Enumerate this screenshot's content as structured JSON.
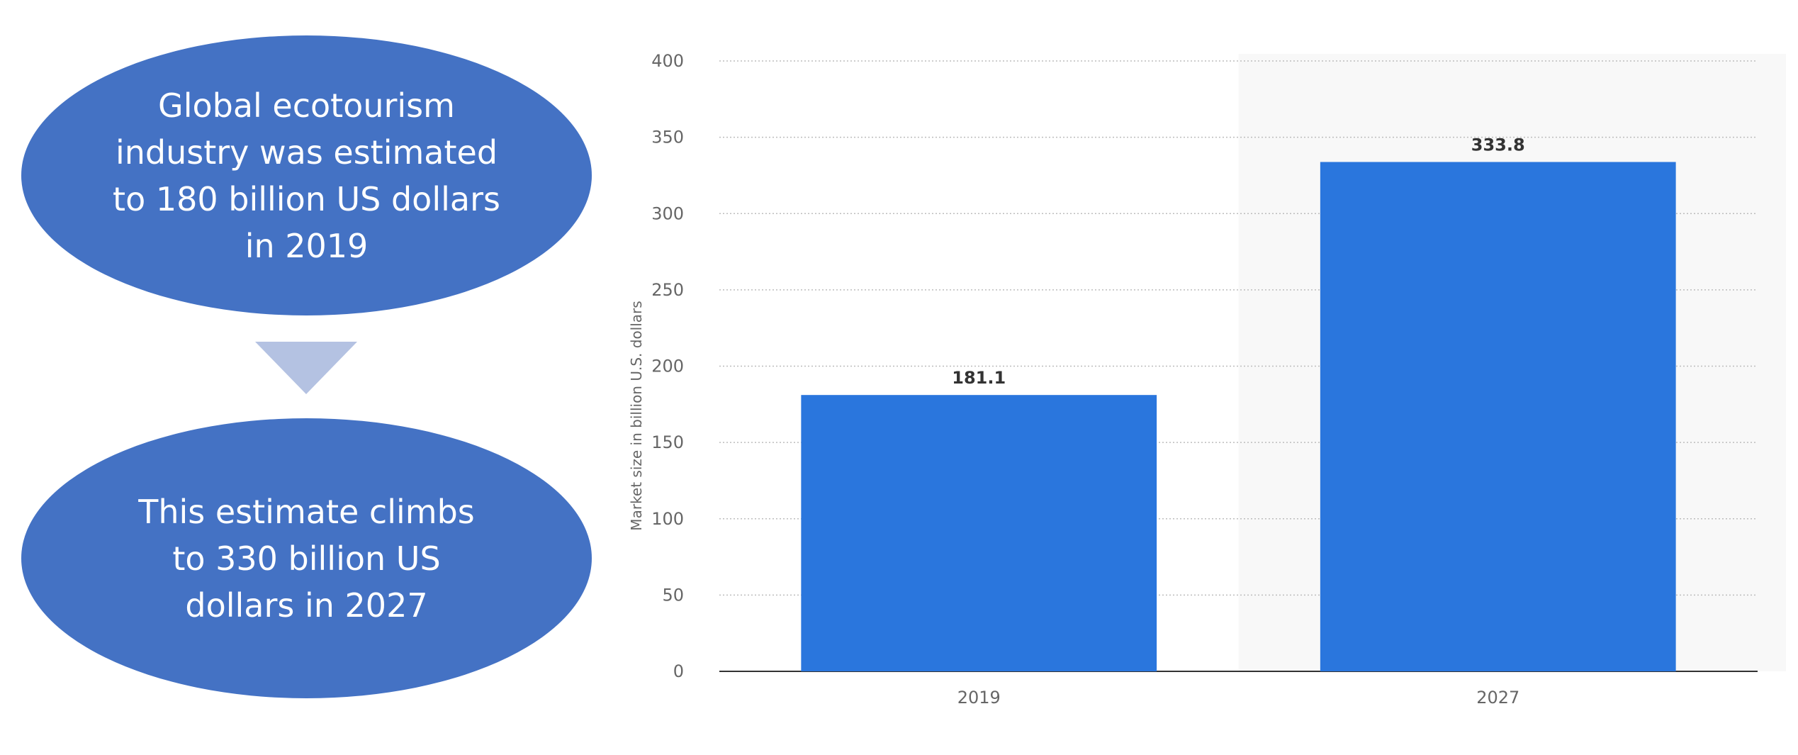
{
  "callouts": {
    "top_text": "Global ecotourism industry was estimated to 180 billion US dollars in 2019",
    "bottom_text": "This estimate climbs to 330 billion US dollars in 2027"
  },
  "colors": {
    "ellipse": "#4472c4",
    "arrow": "#b4c2e2",
    "bar": "#2a76dd",
    "highlight_band": "#f8f8f8"
  },
  "chart_data": {
    "type": "bar",
    "categories": [
      "2019",
      "2027"
    ],
    "values": [
      181.1,
      333.8
    ],
    "data_labels": [
      "181.1",
      "333.8"
    ],
    "title": "",
    "xlabel": "",
    "ylabel": "Market size in billion U.S. dollars",
    "ylim": [
      0,
      400
    ],
    "yticks": [
      0,
      50,
      100,
      150,
      200,
      250,
      300,
      350,
      400
    ],
    "grid": true,
    "highlighted_category": "2027"
  }
}
